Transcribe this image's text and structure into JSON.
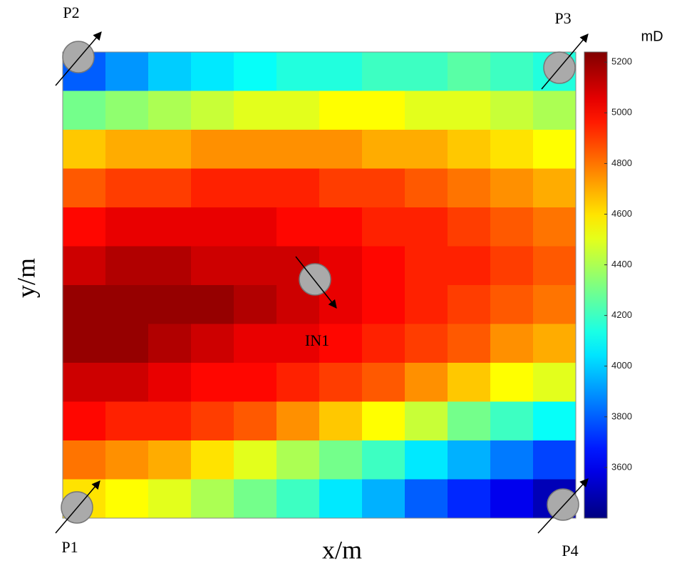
{
  "chart_data": {
    "type": "heatmap",
    "x_label": "x/m",
    "y_label": "y/m",
    "colorbar_label": "mD",
    "colormap": "jet",
    "annotations": [
      "P1",
      "P2",
      "P3",
      "P4",
      "IN1"
    ],
    "zlim": [
      3400,
      5240
    ],
    "zticks": [
      3600,
      3800,
      4000,
      4200,
      4400,
      4600,
      4800,
      5000,
      5200
    ],
    "z": [
      [
        3800,
        3900,
        4000,
        4050,
        4100,
        4150,
        4150,
        4200,
        4200,
        4250,
        4200,
        4150
      ],
      [
        4300,
        4350,
        4400,
        4450,
        4500,
        4500,
        4550,
        4550,
        4500,
        4500,
        4450,
        4400
      ],
      [
        4650,
        4700,
        4700,
        4750,
        4750,
        4750,
        4750,
        4700,
        4700,
        4650,
        4600,
        4550
      ],
      [
        4850,
        4900,
        4900,
        4950,
        4950,
        4950,
        4900,
        4900,
        4850,
        4800,
        4750,
        4700
      ],
      [
        5000,
        5050,
        5050,
        5050,
        5050,
        5000,
        5000,
        4950,
        4950,
        4900,
        4850,
        4800
      ],
      [
        5100,
        5150,
        5150,
        5100,
        5100,
        5100,
        5050,
        5000,
        4950,
        4950,
        4900,
        4850
      ],
      [
        5200,
        5200,
        5200,
        5200,
        5150,
        5100,
        5050,
        5000,
        4950,
        4900,
        4850,
        4800
      ],
      [
        5200,
        5200,
        5150,
        5100,
        5050,
        5050,
        5000,
        4950,
        4900,
        4850,
        4750,
        4700
      ],
      [
        5100,
        5100,
        5050,
        5000,
        5000,
        4950,
        4900,
        4850,
        4750,
        4650,
        4550,
        4500
      ],
      [
        5000,
        4950,
        4950,
        4900,
        4850,
        4750,
        4650,
        4550,
        4450,
        4300,
        4200,
        4100
      ],
      [
        4800,
        4750,
        4700,
        4600,
        4500,
        4400,
        4300,
        4200,
        4050,
        3950,
        3850,
        3750
      ],
      [
        4600,
        4550,
        4500,
        4400,
        4300,
        4200,
        4050,
        3950,
        3800,
        3700,
        3600,
        3500
      ]
    ]
  }
}
